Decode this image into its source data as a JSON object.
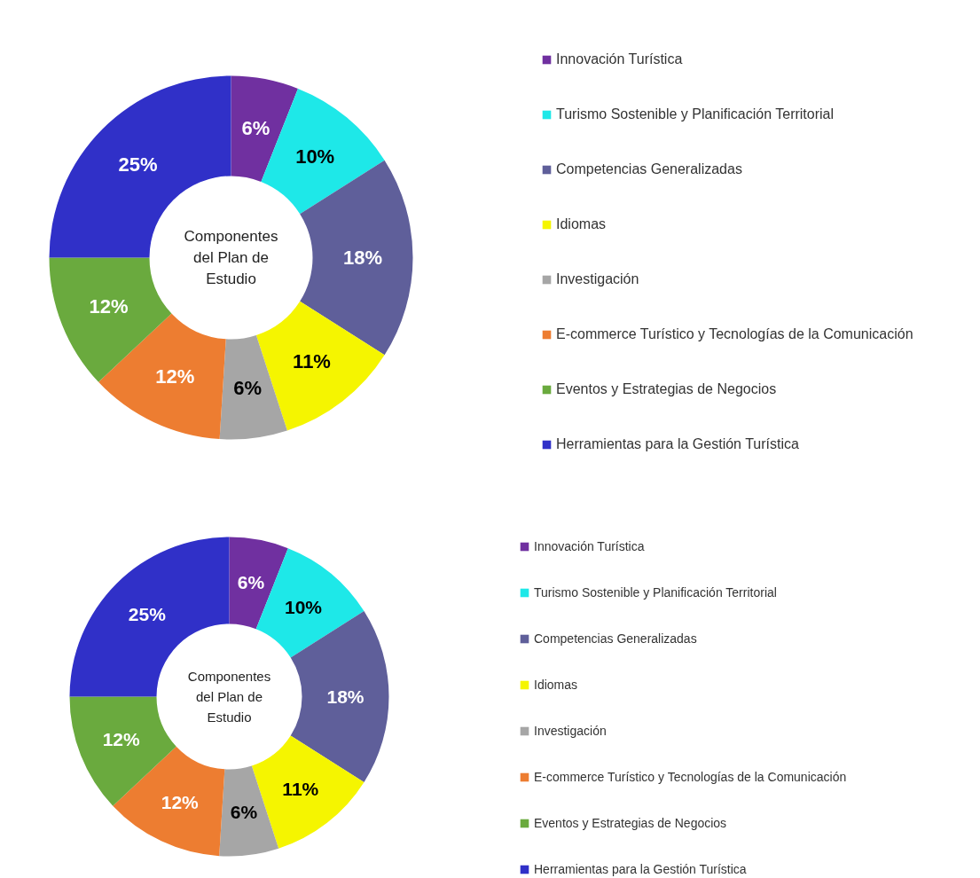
{
  "chart_data": [
    {
      "type": "donut",
      "title": "Componentes del Plan de Estudio",
      "categories": [
        "Innovación Turística",
        "Turismo Sostenible y Planificación Territorial",
        "Competencias Generalizadas",
        "Idiomas",
        "Investigación",
        "E-commerce Turístico y Tecnologías de la Comunicación",
        "Eventos y Estrategias de Negocios",
        "Herramientas para la Gestión Turística"
      ],
      "values": [
        6,
        10,
        18,
        11,
        6,
        12,
        12,
        25
      ],
      "colors": [
        "#7030a0",
        "#1ee8e8",
        "#5f5f9a",
        "#f5f500",
        "#a6a6a6",
        "#ed7d31",
        "#6aaa3e",
        "#3030c8"
      ],
      "value_labels": [
        "6%",
        "10%",
        "18%",
        "11%",
        "6%",
        "12%",
        "12%",
        "25%"
      ],
      "legend": "right"
    },
    {
      "type": "donut",
      "title": "Componentes del Plan de Estudio",
      "categories": [
        "Innovación Turística",
        "Turismo Sostenible y Planificación Territorial",
        "Competencias Generalizadas",
        "Idiomas",
        "Investigación",
        "E-commerce Turístico y Tecnologías de la Comunicación",
        "Eventos y Estrategias de Negocios",
        "Herramientas para la Gestión Turística"
      ],
      "values": [
        6,
        10,
        18,
        11,
        6,
        12,
        12,
        25
      ],
      "colors": [
        "#7030a0",
        "#1ee8e8",
        "#5f5f9a",
        "#f5f500",
        "#a6a6a6",
        "#ed7d31",
        "#6aaa3e",
        "#3030c8"
      ],
      "value_labels": [
        "6%",
        "10%",
        "18%",
        "11%",
        "6%",
        "12%",
        "12%",
        "25%"
      ],
      "legend": "right"
    }
  ]
}
